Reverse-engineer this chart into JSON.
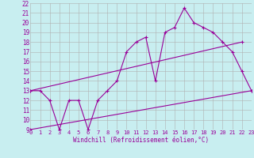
{
  "xlabel": "Windchill (Refroidissement éolien,°C)",
  "bg_color": "#c8eef0",
  "grid_color": "#b0b0b0",
  "line_color": "#990099",
  "xmin": 0,
  "xmax": 23,
  "ymin": 9,
  "ymax": 22,
  "line1_x": [
    0,
    1,
    2,
    3,
    4,
    5,
    6,
    7,
    8,
    9,
    10,
    11,
    12,
    13,
    14,
    15,
    16,
    17,
    18,
    19,
    20,
    21,
    22,
    23
  ],
  "line1_y": [
    13,
    13,
    12,
    9,
    12,
    12,
    9,
    12,
    13,
    14,
    17,
    18,
    18.5,
    14,
    19,
    19.5,
    21.5,
    20,
    19.5,
    19,
    18,
    17,
    15,
    13
  ],
  "line2_x": [
    0,
    22
  ],
  "line2_y": [
    13,
    18
  ],
  "line3_x": [
    0,
    23
  ],
  "line3_y": [
    9,
    13
  ],
  "marker": "+"
}
